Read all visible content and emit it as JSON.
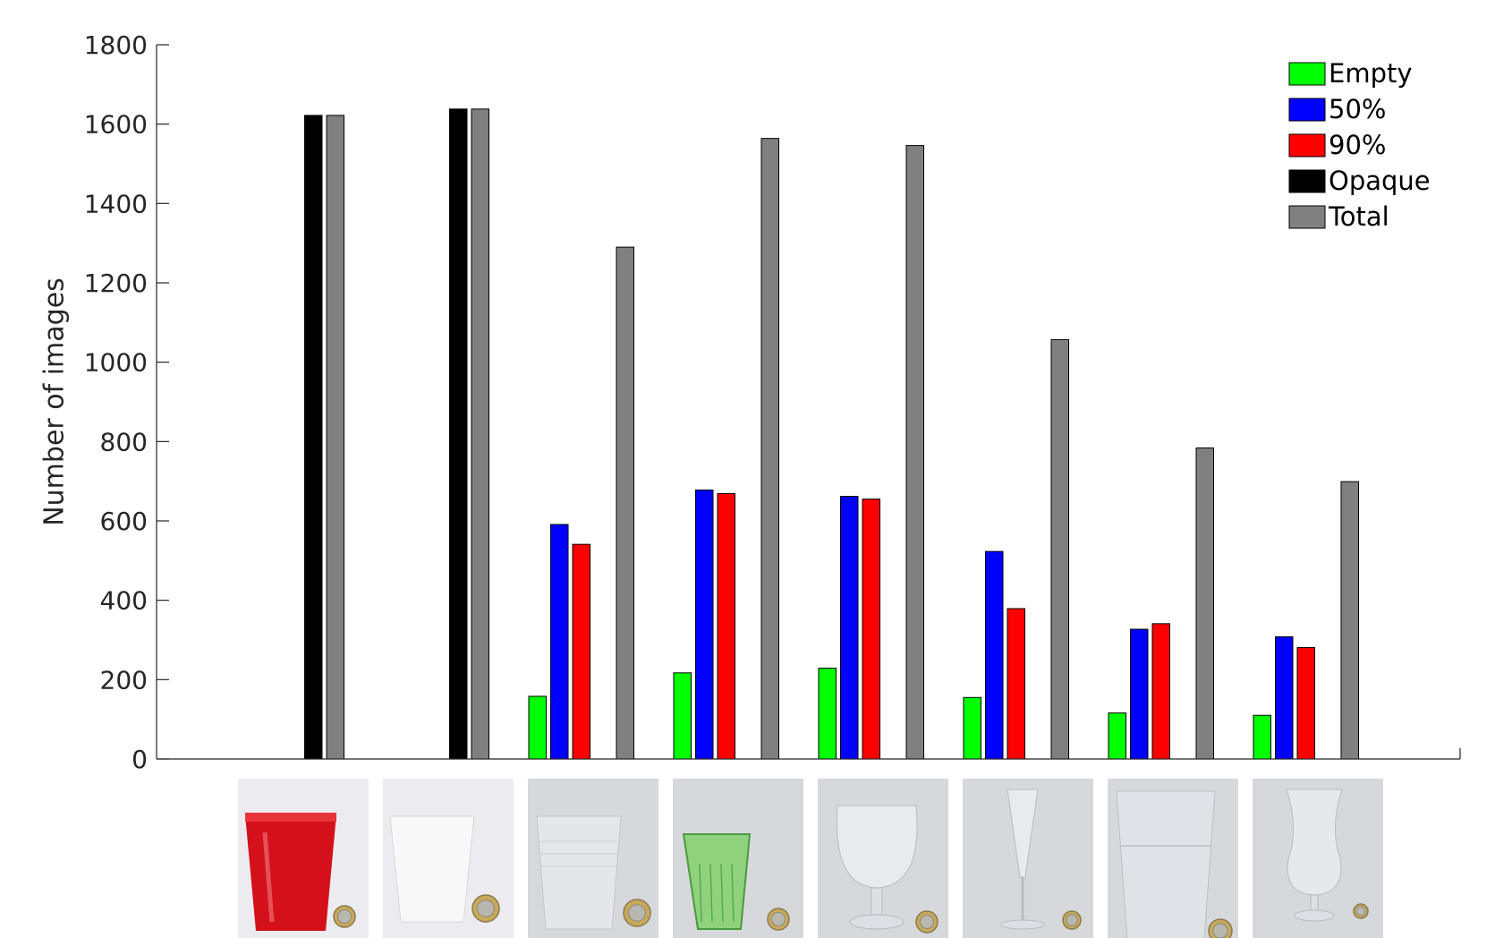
{
  "chart_data": {
    "type": "bar",
    "title": "",
    "xlabel": "",
    "ylabel": "Number of images",
    "ylim": [
      0,
      1800
    ],
    "yticks": [
      0,
      200,
      400,
      600,
      800,
      1000,
      1200,
      1400,
      1600,
      1800
    ],
    "grid": false,
    "legend_position": "top-right",
    "categories": [
      "red plastic cup",
      "white plastic cup",
      "clear plastic cup",
      "green glass",
      "wine glass",
      "flute glass",
      "large clear cup",
      "hurricane glass"
    ],
    "category_images": [
      "red-cup",
      "white-cup",
      "clear-cup",
      "green-glass",
      "wine-glass",
      "flute-glass",
      "large-clear-cup",
      "hurricane-glass"
    ],
    "series": [
      {
        "name": "Empty",
        "color": "#00ff00",
        "values": [
          0,
          0,
          158,
          217,
          229,
          155,
          116,
          110
        ]
      },
      {
        "name": "50%",
        "color": "#0000ff",
        "values": [
          0,
          0,
          591,
          678,
          662,
          523,
          327,
          308
        ]
      },
      {
        "name": "90%",
        "color": "#ff0000",
        "values": [
          0,
          0,
          541,
          669,
          655,
          379,
          341,
          281
        ]
      },
      {
        "name": "Opaque",
        "color": "#000000",
        "values": [
          1622,
          1638,
          0,
          0,
          0,
          0,
          0,
          0
        ]
      },
      {
        "name": "Total",
        "color": "#808080",
        "values": [
          1622,
          1638,
          1290,
          1564,
          1546,
          1057,
          784,
          699
        ]
      }
    ]
  }
}
